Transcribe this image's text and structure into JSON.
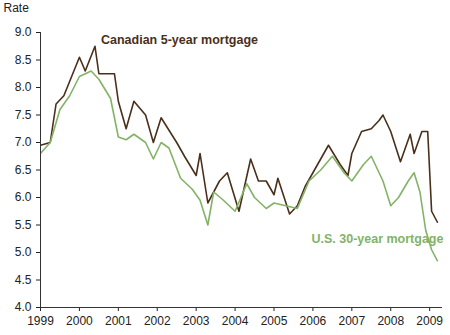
{
  "chart_data": {
    "type": "line",
    "y_label": "Rate",
    "xlim": [
      1999,
      2009.33
    ],
    "xticks": [
      1999,
      2000,
      2001,
      2002,
      2003,
      2004,
      2005,
      2006,
      2007,
      2008,
      2009
    ],
    "ylim": [
      4,
      9
    ],
    "yticks": [
      {
        "value": 4,
        "label": "4.0"
      },
      4.5,
      {
        "value": 5,
        "label": "5.0"
      },
      5.5,
      {
        "value": 6,
        "label": "6.0"
      },
      6.5,
      {
        "value": 7,
        "label": "7.0"
      },
      7.5,
      {
        "value": 8,
        "label": "8.0"
      },
      8.5,
      {
        "value": 9,
        "label": "9.0"
      }
    ],
    "grid": false,
    "series": [
      {
        "name": "Canadian 5-year mortgage",
        "color": "#4a2f1b",
        "x": [
          1999.0,
          1999.25,
          1999.4,
          1999.6,
          1999.8,
          2000.0,
          2000.15,
          2000.4,
          2000.5,
          2000.9,
          2001.0,
          2001.2,
          2001.4,
          2001.7,
          2001.9,
          2002.1,
          2002.5,
          2002.7,
          2003.0,
          2003.1,
          2003.3,
          2003.6,
          2003.8,
          2004.1,
          2004.4,
          2004.6,
          2004.8,
          2005.0,
          2005.1,
          2005.4,
          2005.6,
          2005.8,
          2006.0,
          2006.4,
          2006.7,
          2006.9,
          2007.0,
          2007.25,
          2007.5,
          2007.7,
          2007.8,
          2008.0,
          2008.25,
          2008.5,
          2008.6,
          2008.8,
          2008.95,
          2009.05,
          2009.2
        ],
        "values": [
          6.95,
          7.0,
          7.7,
          7.85,
          8.2,
          8.55,
          8.3,
          8.75,
          8.25,
          8.25,
          7.75,
          7.25,
          7.75,
          7.5,
          7.0,
          7.45,
          7.0,
          6.75,
          6.4,
          6.8,
          5.9,
          6.3,
          6.45,
          5.75,
          6.7,
          6.3,
          6.3,
          6.05,
          6.35,
          5.7,
          5.85,
          6.2,
          6.45,
          6.95,
          6.6,
          6.4,
          6.8,
          7.2,
          7.25,
          7.4,
          7.5,
          7.2,
          6.65,
          7.15,
          6.8,
          7.2,
          7.2,
          5.75,
          5.55
        ]
      },
      {
        "name": "U.S. 30-year mortgage",
        "color": "#82b366",
        "x": [
          1999.0,
          1999.25,
          1999.5,
          1999.75,
          2000.0,
          2000.3,
          2000.5,
          2000.8,
          2001.0,
          2001.2,
          2001.4,
          2001.7,
          2001.9,
          2002.1,
          2002.3,
          2002.6,
          2002.9,
          2003.1,
          2003.3,
          2003.45,
          2003.7,
          2004.0,
          2004.3,
          2004.5,
          2004.8,
          2005.0,
          2005.3,
          2005.6,
          2005.9,
          2006.2,
          2006.5,
          2006.8,
          2007.0,
          2007.3,
          2007.5,
          2007.8,
          2008.0,
          2008.2,
          2008.45,
          2008.6,
          2008.75,
          2008.9,
          2009.05,
          2009.2
        ],
        "values": [
          6.8,
          7.0,
          7.6,
          7.85,
          8.2,
          8.3,
          8.15,
          7.8,
          7.1,
          7.05,
          7.15,
          7.0,
          6.7,
          7.0,
          6.9,
          6.35,
          6.15,
          5.95,
          5.5,
          6.1,
          5.95,
          5.75,
          6.25,
          6.0,
          5.8,
          5.9,
          5.85,
          5.8,
          6.3,
          6.5,
          6.75,
          6.45,
          6.3,
          6.6,
          6.75,
          6.3,
          5.85,
          6.0,
          6.3,
          6.45,
          6.1,
          5.4,
          5.05,
          4.85
        ]
      }
    ]
  }
}
